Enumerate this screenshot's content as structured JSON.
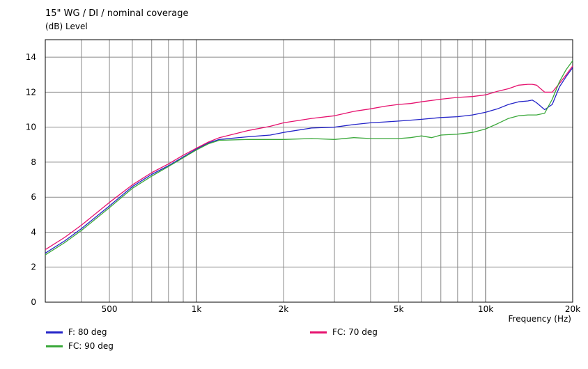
{
  "header": {
    "title": "15\" WG / DI / nominal coverage",
    "y_unit_label": "(dB)  Level"
  },
  "chart_data": {
    "type": "line",
    "title": "15\" WG / DI / nominal coverage",
    "xlabel": "Frequency  (Hz)",
    "ylabel": "(dB)  Level",
    "x_scale": "log",
    "xlim": [
      300,
      20000
    ],
    "ylim": [
      0,
      15
    ],
    "y_ticks": [
      0,
      2,
      4,
      6,
      8,
      10,
      12,
      14
    ],
    "x_tick_labels": [
      {
        "value": 500,
        "label": "500"
      },
      {
        "value": 1000,
        "label": "1k"
      },
      {
        "value": 2000,
        "label": "2k"
      },
      {
        "value": 5000,
        "label": "5k"
      },
      {
        "value": 10000,
        "label": "10k"
      },
      {
        "value": 20000,
        "label": "20k"
      }
    ],
    "x_gridlines": [
      400,
      500,
      600,
      700,
      800,
      900,
      1000,
      2000,
      3000,
      4000,
      5000,
      6000,
      7000,
      8000,
      9000,
      10000,
      20000
    ],
    "grid": true,
    "series": [
      {
        "name": "F: 80 deg",
        "color": "#2323c8",
        "x": [
          300,
          350,
          400,
          500,
          600,
          700,
          800,
          900,
          1000,
          1100,
          1200,
          1500,
          1800,
          2000,
          2500,
          3000,
          3500,
          4000,
          4500,
          5000,
          5500,
          6000,
          7000,
          8000,
          9000,
          10000,
          11000,
          12000,
          13000,
          14000,
          14500,
          15000,
          16000,
          17000,
          18000,
          19000,
          20000
        ],
        "values": [
          2.8,
          3.5,
          4.2,
          5.5,
          6.6,
          7.3,
          7.8,
          8.3,
          8.75,
          9.1,
          9.3,
          9.45,
          9.55,
          9.7,
          9.95,
          10.0,
          10.15,
          10.25,
          10.3,
          10.35,
          10.4,
          10.45,
          10.55,
          10.6,
          10.7,
          10.85,
          11.05,
          11.3,
          11.45,
          11.5,
          11.55,
          11.4,
          11.0,
          11.3,
          12.3,
          12.9,
          13.4
        ]
      },
      {
        "name": "FC: 70 deg",
        "color": "#e6116e",
        "x": [
          300,
          350,
          400,
          500,
          600,
          700,
          800,
          900,
          1000,
          1100,
          1200,
          1500,
          1800,
          2000,
          2500,
          3000,
          3500,
          4000,
          4500,
          5000,
          5500,
          6000,
          7000,
          8000,
          9000,
          10000,
          11000,
          12000,
          13000,
          14000,
          14500,
          15000,
          16000,
          17000,
          18000,
          19000,
          20000
        ],
        "values": [
          3.0,
          3.7,
          4.4,
          5.7,
          6.7,
          7.4,
          7.9,
          8.4,
          8.8,
          9.15,
          9.4,
          9.8,
          10.05,
          10.25,
          10.5,
          10.65,
          10.9,
          11.05,
          11.2,
          11.3,
          11.35,
          11.45,
          11.6,
          11.7,
          11.75,
          11.85,
          12.05,
          12.2,
          12.4,
          12.45,
          12.45,
          12.4,
          12.0,
          12.0,
          12.5,
          13.0,
          13.5
        ]
      },
      {
        "name": "FC: 90 deg",
        "color": "#3aa83a",
        "x": [
          300,
          350,
          400,
          500,
          600,
          700,
          800,
          900,
          1000,
          1100,
          1200,
          1500,
          1800,
          2000,
          2500,
          3000,
          3500,
          4000,
          4500,
          5000,
          5500,
          6000,
          6500,
          7000,
          8000,
          9000,
          10000,
          11000,
          12000,
          13000,
          14000,
          15000,
          16000,
          17000,
          18000,
          19000,
          20000
        ],
        "values": [
          2.7,
          3.4,
          4.1,
          5.4,
          6.5,
          7.2,
          7.75,
          8.25,
          8.7,
          9.05,
          9.25,
          9.3,
          9.3,
          9.3,
          9.35,
          9.3,
          9.4,
          9.35,
          9.35,
          9.35,
          9.4,
          9.5,
          9.4,
          9.55,
          9.6,
          9.7,
          9.9,
          10.2,
          10.5,
          10.65,
          10.7,
          10.7,
          10.8,
          11.6,
          12.6,
          13.3,
          13.8
        ]
      }
    ]
  },
  "legend": {
    "entries": [
      {
        "label": "F: 80 deg",
        "color": "#2323c8"
      },
      {
        "label": "FC: 90 deg",
        "color": "#3aa83a"
      },
      {
        "label": "FC: 70 deg",
        "color": "#e6116e"
      }
    ]
  }
}
